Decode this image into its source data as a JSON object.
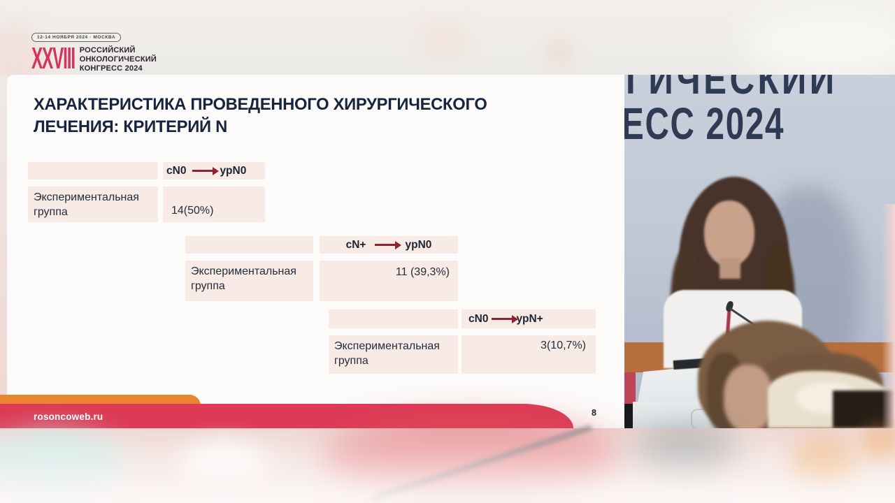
{
  "header": {
    "badge": "12-14 НОЯБРЯ 2024 · МОСКВА",
    "congress_numeral": "XXVIII",
    "congress_name_lines": [
      "РОССИЙСКИЙ",
      "ОНКОЛОГИЧЕСКИЙ",
      "КОНГРЕСС 2024"
    ]
  },
  "slide": {
    "title_lines": [
      "ХАРАКТЕРИСТИКА ПРОВЕДЕННОГО ХИРУРГИЧЕСКОГО",
      "ЛЕЧЕНИЯ: КРИТЕРИЙ N"
    ],
    "tables": [
      {
        "from": "cN0",
        "to": "ypN0",
        "row_label": "Экспериментальная группа",
        "value": "14(50%)"
      },
      {
        "from": "cN+",
        "to": "ypN0",
        "row_label": "Экспериментальная группа",
        "value": "11 (39,3%)"
      },
      {
        "from": "cN0",
        "to": "ypN+",
        "row_label": "Экспериментальная группа",
        "value": "3(10,7%)"
      }
    ],
    "footer_url": "rosoncoweb.ru",
    "page_number": "8"
  },
  "stage_backdrop": {
    "wall_text_line1": "ГИЧЕСКИЙ",
    "wall_text_line2": "ЕСС 2024"
  },
  "colors": {
    "accent_crimson": "#dc3a55",
    "accent_orange": "#ec8330",
    "logo_pink": "#d6335c",
    "table_cell_bg": "#f8eae5",
    "arrow_maroon": "#8d2332",
    "title_navy": "#16243d",
    "wall_text_navy": "#2f3b55",
    "wall_stripe_orange": "#b66e3c"
  }
}
